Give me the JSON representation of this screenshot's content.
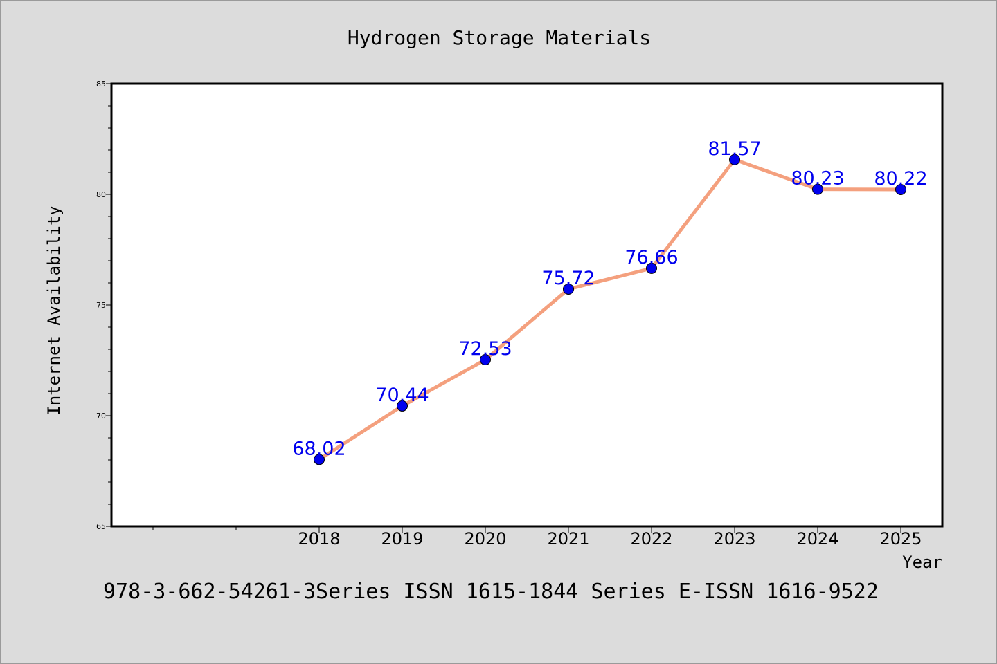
{
  "chart_data": {
    "type": "line",
    "title": "Hydrogen Storage Materials",
    "xlabel": "Year",
    "ylabel": "Internet Availability",
    "categories": [
      "2018",
      "2019",
      "2020",
      "2021",
      "2022",
      "2023",
      "2024",
      "2025"
    ],
    "series": [
      {
        "values": [
          68.02,
          70.44,
          72.53,
          75.72,
          76.66,
          81.57,
          80.23,
          80.22
        ],
        "labels": [
          "68.02",
          "70.44",
          "72.53",
          "75.72",
          "76.66",
          "81.57",
          "80.23",
          "80.22"
        ]
      }
    ],
    "ylim": [
      65,
      85
    ],
    "yticks": [
      "65",
      "70",
      "75",
      "80",
      "85"
    ],
    "grid": false,
    "legend": "none",
    "footer": "978-3-662-54261-3Series ISSN 1615-1844 Series E-ISSN 1616-9522",
    "colors": {
      "background": "#dcdcdc",
      "plot_background": "#ffffff",
      "line": "#f4a07e",
      "marker": "#0000ee",
      "data_label": "#0000ee",
      "text": "#000000"
    }
  }
}
